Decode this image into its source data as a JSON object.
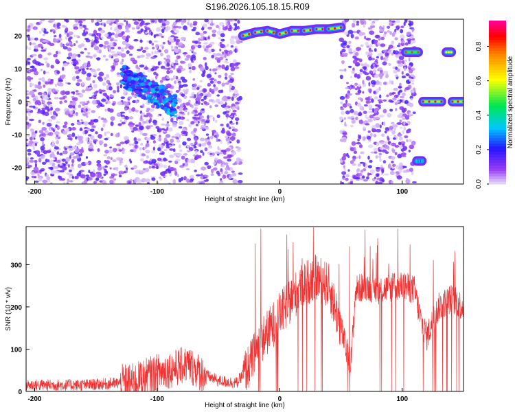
{
  "title": "S196.2026.105.18.15.R09",
  "chart_data": [
    {
      "type": "heatmap",
      "xlabel": "Height of straight line (km)",
      "ylabel": "Frequency (Hz)",
      "xlim": [
        -207,
        150
      ],
      "ylim": [
        -25,
        25
      ],
      "xticks": [
        -200,
        -100,
        0,
        100
      ],
      "yticks": [
        -20,
        -10,
        0,
        10,
        20
      ],
      "colorbar": {
        "label": "Normalized spectral amplitude",
        "range": [
          0,
          0.95
        ],
        "ticks": [
          0.0,
          0.2,
          0.4,
          0.6,
          0.8
        ]
      },
      "features": [
        {
          "kind": "noise",
          "x_range": [
            -207,
            -32
          ],
          "f_range": [
            -25,
            25
          ]
        },
        {
          "kind": "noise",
          "x_range": [
            50,
            110
          ],
          "f_range": [
            -25,
            25
          ]
        },
        {
          "kind": "blob",
          "x_range": [
            -130,
            -85
          ],
          "f_range": [
            -2,
            12
          ],
          "peak": 0.25
        },
        {
          "kind": "track",
          "x": [
            -30,
            -20,
            -10,
            0,
            10,
            20,
            30,
            40,
            50
          ],
          "f": [
            20,
            21,
            21.5,
            20.5,
            21.5,
            21.5,
            22,
            22,
            22.5
          ],
          "peak": 0.9
        },
        {
          "kind": "track",
          "x": [
            103,
            113
          ],
          "f": [
            15,
            15
          ],
          "peak": 0.8
        },
        {
          "kind": "track",
          "x": [
            136,
            140
          ],
          "f": [
            15,
            15
          ],
          "peak": 0.6
        },
        {
          "kind": "track",
          "x": [
            117,
            132
          ],
          "f": [
            0,
            0
          ],
          "peak": 0.9
        },
        {
          "kind": "track",
          "x": [
            141,
            150
          ],
          "f": [
            0,
            0
          ],
          "peak": 0.9
        },
        {
          "kind": "track",
          "x": [
            112,
            116
          ],
          "f": [
            -18,
            -18
          ],
          "peak": 0.35
        }
      ]
    },
    {
      "type": "line",
      "xlabel": "Height of straight line (km)",
      "ylabel": "SNR (10 * v/v)",
      "xlim": [
        -207,
        150
      ],
      "ylim": [
        0,
        390
      ],
      "xticks": [
        -200,
        -100,
        0,
        100
      ],
      "yticks": [
        0,
        100,
        200,
        300
      ],
      "color": "#ee3333",
      "baseline": {
        "x": [
          -207,
          -160,
          -140,
          -120,
          -100,
          -85,
          -75,
          -65,
          -50,
          -35,
          -25,
          -15,
          0,
          10,
          20,
          30,
          40,
          45,
          50,
          55,
          58,
          62,
          70,
          80,
          90,
          100,
          110,
          115,
          120,
          130,
          140,
          150
        ],
        "y": [
          15,
          15,
          18,
          22,
          45,
          55,
          65,
          45,
          25,
          20,
          60,
          120,
          180,
          220,
          255,
          270,
          250,
          200,
          150,
          90,
          60,
          240,
          250,
          240,
          245,
          250,
          240,
          170,
          130,
          200,
          220,
          200
        ]
      },
      "noise": [
        {
          "x_range": [
            -207,
            -130
          ],
          "amp": 14
        },
        {
          "x_range": [
            -130,
            -60
          ],
          "amp": 45
        },
        {
          "x_range": [
            -60,
            -30
          ],
          "amp": 14
        },
        {
          "x_range": [
            -30,
            50
          ],
          "amp": 55
        },
        {
          "x_range": [
            50,
            150
          ],
          "amp": 35
        }
      ],
      "spikes": {
        "x_range": [
          -20,
          150
        ],
        "min": 300,
        "max": 390
      }
    }
  ]
}
